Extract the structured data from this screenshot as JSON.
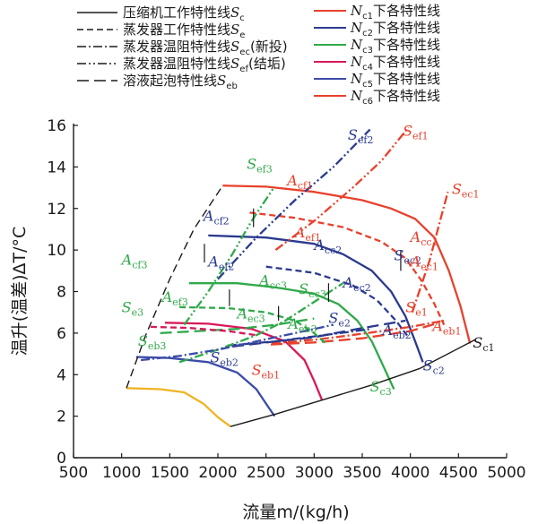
{
  "chart_data": {
    "type": "line",
    "xlabel": "流量m/(kg/h)",
    "ylabel": "温升(温差)ΔT/°C",
    "xlim": [
      500,
      5000
    ],
    "ylim": [
      0,
      16
    ],
    "xticks": [
      500,
      1000,
      1500,
      2000,
      2500,
      3000,
      3500,
      4000,
      4500,
      5000
    ],
    "yticks": [
      0,
      2,
      4,
      6,
      8,
      10,
      12,
      14,
      16
    ],
    "grid": false,
    "legend": {
      "line_styles": [
        {
          "label": "压缩机工作特性线",
          "sym": "S",
          "sub": "c",
          "suffix": "",
          "dash": ""
        },
        {
          "label": "蒸发器工作特性线",
          "sym": "S",
          "sub": "e",
          "suffix": "",
          "dash": "7,4"
        },
        {
          "label": "蒸发器温阻特性线",
          "sym": "S",
          "sub": "ec",
          "suffix": "(新投)",
          "dash": "10,3,2,3"
        },
        {
          "label": "蒸发器温阻特性线",
          "sym": "S",
          "sub": "ef",
          "suffix": "(结垢)",
          "dash": "10,3,2,3,2,3"
        },
        {
          "label": "溶液起泡特性线",
          "sym": "S",
          "sub": "eb",
          "suffix": "",
          "dash": "13,6"
        }
      ],
      "color_series": [
        {
          "sym": "N",
          "sub": "c1",
          "label": "下各特性线",
          "color": "#e8412c"
        },
        {
          "sym": "N",
          "sub": "c2",
          "label": "下各特性线",
          "color": "#2b3a8f"
        },
        {
          "sym": "N",
          "sub": "c3",
          "label": "下各特性线",
          "color": "#2fa94a"
        },
        {
          "sym": "N",
          "sub": "c4",
          "label": "下各特性线",
          "color": "#d8185a"
        },
        {
          "sym": "N",
          "sub": "c5",
          "label": "下各特性线",
          "color": "#3b4ba8"
        },
        {
          "sym": "N",
          "sub": "c6",
          "label": "下各特性线",
          "color": "#e8412c"
        }
      ]
    },
    "curves": [
      {
        "id": "sc1-work",
        "color": "#e8412c",
        "dash": "",
        "points": [
          [
            2050,
            13.1
          ],
          [
            2500,
            13.05
          ],
          [
            3000,
            12.8
          ],
          [
            3500,
            12.4
          ],
          [
            3800,
            12.0
          ],
          [
            4050,
            11.5
          ],
          [
            4250,
            10.6
          ],
          [
            4400,
            9.0
          ],
          [
            4520,
            7.3
          ],
          [
            4620,
            5.5
          ]
        ]
      },
      {
        "id": "sc2-work",
        "color": "#2b3a8f",
        "dash": "",
        "points": [
          [
            1900,
            10.7
          ],
          [
            2500,
            10.6
          ],
          [
            3000,
            10.3
          ],
          [
            3300,
            9.8
          ],
          [
            3600,
            9.0
          ],
          [
            3800,
            8.0
          ],
          [
            3950,
            6.8
          ],
          [
            4050,
            5.6
          ],
          [
            4130,
            4.6
          ]
        ]
      },
      {
        "id": "sc3-work",
        "color": "#2fa94a",
        "dash": "",
        "points": [
          [
            1700,
            8.4
          ],
          [
            2200,
            8.4
          ],
          [
            2600,
            8.2
          ],
          [
            3000,
            7.9
          ],
          [
            3250,
            7.4
          ],
          [
            3450,
            6.6
          ],
          [
            3600,
            5.6
          ],
          [
            3720,
            4.4
          ],
          [
            3830,
            3.3
          ]
        ]
      },
      {
        "id": "sc4-work",
        "color": "#d8185a",
        "dash": "",
        "points": [
          [
            1450,
            6.5
          ],
          [
            1900,
            6.45
          ],
          [
            2350,
            6.2
          ],
          [
            2700,
            5.6
          ],
          [
            2900,
            4.7
          ],
          [
            3000,
            3.7
          ],
          [
            3080,
            2.8
          ]
        ]
      },
      {
        "id": "sc5-work",
        "color": "#3b4ba8",
        "dash": "",
        "points": [
          [
            1150,
            4.85
          ],
          [
            1500,
            4.8
          ],
          [
            1900,
            4.6
          ],
          [
            2200,
            4.1
          ],
          [
            2400,
            3.3
          ],
          [
            2530,
            2.4
          ],
          [
            2590,
            2.0
          ]
        ]
      },
      {
        "id": "sc6-work",
        "color": "#f0b323",
        "dash": "",
        "points": [
          [
            1050,
            3.35
          ],
          [
            1400,
            3.3
          ],
          [
            1650,
            3.15
          ],
          [
            1850,
            2.6
          ],
          [
            2000,
            1.95
          ],
          [
            2130,
            1.5
          ]
        ]
      },
      {
        "id": "sc-compressor",
        "color": "#1a1a1a",
        "dash": "",
        "points": [
          [
            2130,
            1.5
          ],
          [
            2600,
            2.1
          ],
          [
            3100,
            2.8
          ],
          [
            3600,
            3.5
          ],
          [
            4100,
            4.3
          ],
          [
            4680,
            5.7
          ]
        ]
      },
      {
        "id": "seb-boundary",
        "color": "#1a1a1a",
        "dash": "9,5",
        "points": [
          [
            1050,
            3.35
          ],
          [
            1250,
            5.9
          ],
          [
            1500,
            8.6
          ],
          [
            1750,
            11.0
          ],
          [
            2050,
            13.1
          ]
        ]
      },
      {
        "id": "se1",
        "color": "#e8412c",
        "dash": "7,4",
        "points": [
          [
            2330,
            11.8
          ],
          [
            2800,
            11.55
          ],
          [
            3300,
            11.1
          ],
          [
            3700,
            10.4
          ],
          [
            3950,
            9.6
          ],
          [
            4120,
            8.5
          ],
          [
            4250,
            7.4
          ],
          [
            4350,
            6.4
          ]
        ]
      },
      {
        "id": "sec1",
        "color": "#e8412c",
        "dash": "10,3,2,3",
        "points": [
          [
            2560,
            5.5
          ],
          [
            3050,
            5.7
          ],
          [
            3550,
            6.0
          ],
          [
            4000,
            6.3
          ],
          [
            4350,
            6.6
          ]
        ]
      },
      {
        "id": "sec1-up",
        "color": "#e8412c",
        "dash": "10,3,2,3",
        "points": [
          [
            4020,
            7.0
          ],
          [
            4200,
            9.5
          ],
          [
            4320,
            11.6
          ],
          [
            4390,
            12.8
          ]
        ]
      },
      {
        "id": "sef1",
        "color": "#e8412c",
        "dash": "10,3,2,3,2,3",
        "points": [
          [
            2600,
            10.0
          ],
          [
            3000,
            11.4
          ],
          [
            3400,
            13.0
          ],
          [
            3700,
            14.3
          ],
          [
            3980,
            15.9
          ]
        ]
      },
      {
        "id": "seb1",
        "color": "#e8412c",
        "dash": "13,6",
        "points": [
          [
            2550,
            5.45
          ],
          [
            3000,
            5.55
          ],
          [
            3500,
            5.75
          ],
          [
            4000,
            6.1
          ],
          [
            4300,
            6.5
          ]
        ]
      },
      {
        "id": "se2",
        "color": "#2b3a8f",
        "dash": "7,4",
        "points": [
          [
            2500,
            9.2
          ],
          [
            3000,
            8.9
          ],
          [
            3400,
            8.3
          ],
          [
            3650,
            7.6
          ],
          [
            3850,
            6.6
          ],
          [
            3980,
            5.8
          ]
        ]
      },
      {
        "id": "sec2",
        "color": "#2b3a8f",
        "dash": "10,3,2,3",
        "points": [
          [
            2100,
            5.4
          ],
          [
            2600,
            5.6
          ],
          [
            3100,
            5.9
          ],
          [
            3600,
            6.2
          ]
        ]
      },
      {
        "id": "sef2",
        "color": "#2b3a8f",
        "dash": "10,3,2,3,2,3",
        "points": [
          [
            2000,
            8.6
          ],
          [
            2400,
            10.6
          ],
          [
            2800,
            12.4
          ],
          [
            3200,
            14.0
          ],
          [
            3580,
            15.8
          ]
        ]
      },
      {
        "id": "seb2",
        "color": "#2b3a8f",
        "dash": "13,6",
        "points": [
          [
            2150,
            5.35
          ],
          [
            2600,
            5.6
          ],
          [
            3000,
            5.8
          ],
          [
            3450,
            6.2
          ],
          [
            3950,
            6.6
          ]
        ]
      },
      {
        "id": "se3",
        "color": "#2fa94a",
        "dash": "7,4",
        "points": [
          [
            1600,
            7.25
          ],
          [
            2100,
            7.2
          ],
          [
            2500,
            7.0
          ],
          [
            2800,
            6.6
          ],
          [
            3000,
            6.0
          ],
          [
            3120,
            5.5
          ]
        ]
      },
      {
        "id": "sec3",
        "color": "#2fa94a",
        "dash": "10,3,2,3",
        "points": [
          [
            1600,
            4.6
          ],
          [
            2000,
            5.2
          ],
          [
            2400,
            5.9
          ],
          [
            2700,
            6.6
          ],
          [
            3000,
            7.5
          ],
          [
            3300,
            8.4
          ]
        ]
      },
      {
        "id": "sef3",
        "color": "#2fa94a",
        "dash": "10,3,2,3,2,3",
        "points": [
          [
            1650,
            6.4
          ],
          [
            1900,
            8.0
          ],
          [
            2150,
            9.8
          ],
          [
            2350,
            11.4
          ],
          [
            2580,
            13.0
          ]
        ]
      },
      {
        "id": "seb3",
        "color": "#2fa94a",
        "dash": "13,6",
        "points": [
          [
            1400,
            6.0
          ],
          [
            1800,
            6.1
          ],
          [
            2200,
            6.2
          ],
          [
            2600,
            6.4
          ],
          [
            3000,
            6.7
          ]
        ]
      },
      {
        "id": "se4",
        "color": "#d8185a",
        "dash": "7,4",
        "points": [
          [
            1300,
            6.3
          ],
          [
            1700,
            6.25
          ],
          [
            2100,
            6.1
          ],
          [
            2400,
            5.9
          ]
        ]
      },
      {
        "id": "se5",
        "color": "#3b4ba8",
        "dash": "10,3,2,3",
        "points": [
          [
            1200,
            4.7
          ],
          [
            1600,
            4.9
          ],
          [
            2000,
            5.2
          ],
          [
            2400,
            5.6
          ],
          [
            2800,
            6.0
          ],
          [
            3200,
            6.4
          ]
        ]
      }
    ],
    "annotations": [
      {
        "sym": "S",
        "sub": "c1",
        "x": 4650,
        "y": 5.3,
        "color": "#1a1a1a"
      },
      {
        "sym": "S",
        "sub": "c2",
        "x": 4130,
        "y": 4.2,
        "color": "#2b3a8f"
      },
      {
        "sym": "S",
        "sub": "c3",
        "x": 3580,
        "y": 3.2,
        "color": "#2fa94a"
      },
      {
        "sym": "S",
        "sub": "e1",
        "x": 3950,
        "y": 7.0,
        "color": "#e8412c"
      },
      {
        "sym": "S",
        "sub": "e2",
        "x": 3150,
        "y": 6.5,
        "color": "#2b3a8f"
      },
      {
        "sym": "S",
        "sub": "e3",
        "x": 1000,
        "y": 7.0,
        "color": "#2fa94a"
      },
      {
        "sym": "S",
        "sub": "ec1",
        "x": 4430,
        "y": 12.7,
        "color": "#e8412c"
      },
      {
        "sym": "S",
        "sub": "ec2",
        "x": 3830,
        "y": 9.5,
        "color": "#2b3a8f"
      },
      {
        "sym": "S",
        "sub": "ec3",
        "x": 2840,
        "y": 7.9,
        "color": "#2fa94a"
      },
      {
        "sym": "S",
        "sub": "ef1",
        "x": 3920,
        "y": 15.5,
        "color": "#e8412c"
      },
      {
        "sym": "S",
        "sub": "ef2",
        "x": 3350,
        "y": 15.3,
        "color": "#2b3a8f"
      },
      {
        "sym": "S",
        "sub": "ef3",
        "x": 2300,
        "y": 13.9,
        "color": "#2fa94a"
      },
      {
        "sym": "S",
        "sub": "eb1",
        "x": 2350,
        "y": 4.0,
        "color": "#e8412c"
      },
      {
        "sym": "S",
        "sub": "eb2",
        "x": 1920,
        "y": 4.6,
        "color": "#2b3a8f"
      },
      {
        "sym": "S",
        "sub": "eb3",
        "x": 1170,
        "y": 5.4,
        "color": "#2fa94a"
      },
      {
        "sym": "A",
        "sub": "cf1",
        "x": 2720,
        "y": 13.1,
        "color": "#e8412c"
      },
      {
        "sym": "A",
        "sub": "ef1",
        "x": 2800,
        "y": 10.6,
        "color": "#e8412c"
      },
      {
        "sym": "A",
        "sub": "cc1",
        "x": 4000,
        "y": 10.4,
        "color": "#e8412c"
      },
      {
        "sym": "A",
        "sub": "ec1",
        "x": 4000,
        "y": 9.2,
        "color": "#e8412c"
      },
      {
        "sym": "A",
        "sub": "eb1",
        "x": 4230,
        "y": 6.1,
        "color": "#e8412c"
      },
      {
        "sym": "A",
        "sub": "cf2",
        "x": 1850,
        "y": 11.4,
        "color": "#2b3a8f"
      },
      {
        "sym": "A",
        "sub": "ef2",
        "x": 1900,
        "y": 9.2,
        "color": "#2b3a8f"
      },
      {
        "sym": "A",
        "sub": "cc2",
        "x": 3000,
        "y": 10.0,
        "color": "#2b3a8f"
      },
      {
        "sym": "A",
        "sub": "ec2",
        "x": 3300,
        "y": 8.2,
        "color": "#2b3a8f"
      },
      {
        "sym": "A",
        "sub": "eb2",
        "x": 3710,
        "y": 5.9,
        "color": "#2b3a8f"
      },
      {
        "sym": "A",
        "sub": "cf3",
        "x": 1000,
        "y": 9.3,
        "color": "#2fa94a"
      },
      {
        "sym": "A",
        "sub": "ef3",
        "x": 1420,
        "y": 7.5,
        "color": "#2fa94a"
      },
      {
        "sym": "A",
        "sub": "cc3",
        "x": 2430,
        "y": 8.3,
        "color": "#2fa94a"
      },
      {
        "sym": "A",
        "sub": "ec3",
        "x": 2200,
        "y": 6.7,
        "color": "#2fa94a"
      },
      {
        "sym": "A",
        "sub": "eb3",
        "x": 2730,
        "y": 6.2,
        "color": "#2fa94a"
      }
    ],
    "markers": [
      {
        "x": 2370,
        "y": 12.0,
        "y2": 11.1,
        "color": "#1a1a1a"
      },
      {
        "x": 1860,
        "y": 10.3,
        "y2": 9.4,
        "color": "#1a1a1a"
      },
      {
        "x": 2120,
        "y": 8.1,
        "y2": 7.3,
        "color": "#1a1a1a"
      },
      {
        "x": 3900,
        "y": 10.0,
        "y2": 9.0,
        "color": "#1a1a1a"
      },
      {
        "x": 3150,
        "y": 8.4,
        "y2": 7.5,
        "color": "#1a1a1a"
      },
      {
        "x": 2630,
        "y": 7.3,
        "y2": 6.6,
        "color": "#1a1a1a"
      }
    ]
  }
}
